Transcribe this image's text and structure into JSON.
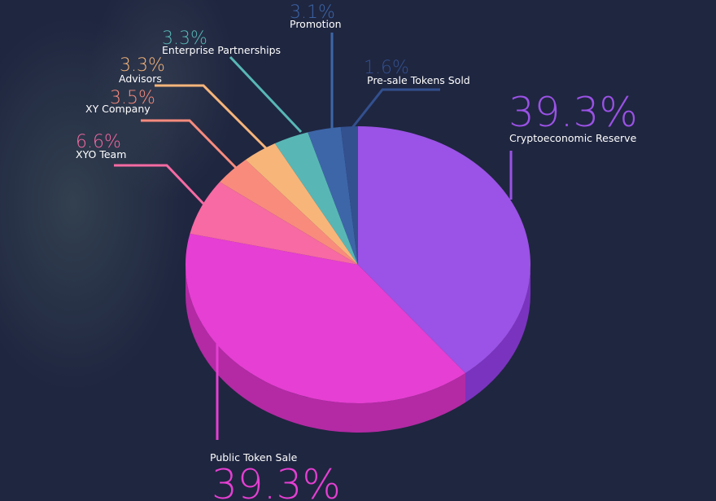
{
  "chart_data": {
    "type": "pie",
    "title": "",
    "slices": [
      {
        "label": "Cryptoeconomic Reserve",
        "pct_label": "39.3%",
        "value": 39.3,
        "color": "#9b52e6",
        "side_color": "#7a33bf"
      },
      {
        "label": "Public Token Sale",
        "pct_label": "39.3%",
        "value": 39.3,
        "color": "#e63fd3",
        "side_color": "#b32aa4"
      },
      {
        "label": "XYO Team",
        "pct_label": "6.6%",
        "value": 6.6,
        "color": "#f76aa3",
        "side_color": "#c7427c"
      },
      {
        "label": "XY Company",
        "pct_label": "3.5%",
        "value": 3.5,
        "color": "#f98b7d",
        "side_color": "#cc6a5e"
      },
      {
        "label": "Advisors",
        "pct_label": "3.3%",
        "value": 3.3,
        "color": "#f7b57a",
        "side_color": "#c98a55"
      },
      {
        "label": "Enterprise Partnerships",
        "pct_label": "3.3%",
        "value": 3.3,
        "color": "#58b7b5",
        "side_color": "#3e8a88"
      },
      {
        "label": "Promotion",
        "pct_label": "3.1%",
        "value": 3.1,
        "color": "#3d66a8",
        "side_color": "#2c4d85"
      },
      {
        "label": "Pre-sale Tokens Sold",
        "pct_label": "1.6%",
        "value": 1.6,
        "color": "#33508f",
        "side_color": "#243b6e"
      }
    ],
    "label_color_label": "#ffffff",
    "background": "#1f2640"
  }
}
